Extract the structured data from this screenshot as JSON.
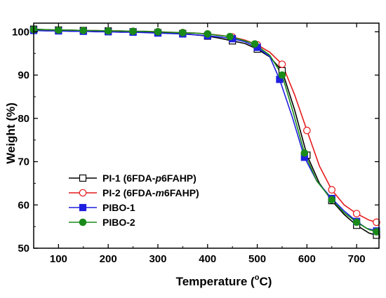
{
  "chart_data": {
    "type": "line",
    "xlabel_main": "Temperature (",
    "xlabel_sup": "o",
    "xlabel_tail": "C)",
    "ylabel": "Weight (%)",
    "xlim": [
      50,
      745
    ],
    "ylim": [
      50,
      102
    ],
    "x_ticks": [
      100,
      200,
      300,
      400,
      500,
      600,
      700
    ],
    "y_ticks": [
      50,
      60,
      70,
      80,
      90,
      100
    ],
    "legend_position": "bottom-left",
    "series": [
      {
        "name": "PI-1 (6FDA-p6FAHP)",
        "name_parts": [
          {
            "t": "PI-1 (6FDA-",
            "i": false
          },
          {
            "t": "p",
            "i": true
          },
          {
            "t": "6FAHP)",
            "i": false
          }
        ],
        "color": "#000000",
        "marker": "square-open",
        "x": [
          50,
          75,
          100,
          125,
          150,
          175,
          200,
          225,
          250,
          275,
          300,
          325,
          350,
          375,
          400,
          425,
          450,
          475,
          500,
          525,
          550,
          575,
          600,
          625,
          650,
          675,
          700,
          725,
          740
        ],
        "y": [
          100.6,
          100.5,
          100.4,
          100.4,
          100.3,
          100.2,
          100.2,
          100.1,
          100.0,
          99.9,
          99.8,
          99.7,
          99.6,
          99.3,
          99.0,
          98.5,
          97.9,
          97.3,
          96.0,
          94.2,
          91.0,
          82.0,
          71.5,
          65.0,
          61.0,
          57.8,
          55.3,
          53.5,
          53.0
        ]
      },
      {
        "name": "PI-2 (6FDA-m6FAHP)",
        "name_parts": [
          {
            "t": "PI-2 (6FDA-",
            "i": false
          },
          {
            "t": "m",
            "i": true
          },
          {
            "t": "6FAHP)",
            "i": false
          }
        ],
        "color": "#e41a1c",
        "marker": "circle-open",
        "x": [
          50,
          75,
          100,
          125,
          150,
          175,
          200,
          225,
          250,
          275,
          300,
          325,
          350,
          375,
          400,
          425,
          450,
          475,
          500,
          525,
          550,
          575,
          600,
          625,
          650,
          675,
          700,
          725,
          740
        ],
        "y": [
          100.4,
          100.4,
          100.4,
          100.3,
          100.3,
          100.3,
          100.2,
          100.2,
          100.1,
          100.1,
          100.0,
          99.9,
          99.8,
          99.7,
          99.5,
          99.2,
          98.8,
          98.1,
          97.0,
          95.3,
          92.5,
          85.5,
          77.2,
          69.0,
          63.5,
          60.0,
          58.0,
          56.5,
          56.0
        ]
      },
      {
        "name": "PIBO-1",
        "name_parts": [
          {
            "t": "PIBO-1",
            "i": false
          }
        ],
        "color": "#1f1fe0",
        "marker": "square-filled",
        "x": [
          50,
          75,
          100,
          125,
          150,
          175,
          200,
          225,
          250,
          275,
          300,
          325,
          350,
          375,
          400,
          425,
          450,
          475,
          500,
          525,
          545,
          570,
          595,
          620,
          650,
          675,
          700,
          720,
          740
        ],
        "y": [
          100.3,
          100.2,
          100.2,
          100.1,
          100.1,
          100.0,
          100.0,
          99.9,
          99.9,
          99.8,
          99.7,
          99.6,
          99.5,
          99.3,
          99.1,
          98.8,
          98.4,
          97.7,
          96.4,
          94.3,
          89.0,
          80.5,
          71.0,
          65.5,
          61.5,
          58.6,
          56.2,
          54.6,
          54.0
        ]
      },
      {
        "name": "PIBO-2",
        "name_parts": [
          {
            "t": "PIBO-2",
            "i": false
          }
        ],
        "color": "#1a8a1a",
        "marker": "circle-filled",
        "x": [
          50,
          75,
          100,
          125,
          150,
          175,
          200,
          225,
          250,
          275,
          300,
          325,
          350,
          375,
          400,
          420,
          445,
          470,
          495,
          525,
          550,
          572,
          595,
          620,
          650,
          675,
          700,
          725,
          740
        ],
        "y": [
          100.5,
          100.5,
          100.4,
          100.4,
          100.3,
          100.3,
          100.2,
          100.2,
          100.1,
          100.1,
          100.0,
          99.9,
          99.8,
          99.7,
          99.5,
          99.2,
          98.9,
          98.1,
          97.2,
          94.6,
          90.0,
          81.5,
          72.0,
          65.5,
          61.2,
          58.2,
          56.0,
          54.3,
          53.8
        ]
      }
    ]
  }
}
